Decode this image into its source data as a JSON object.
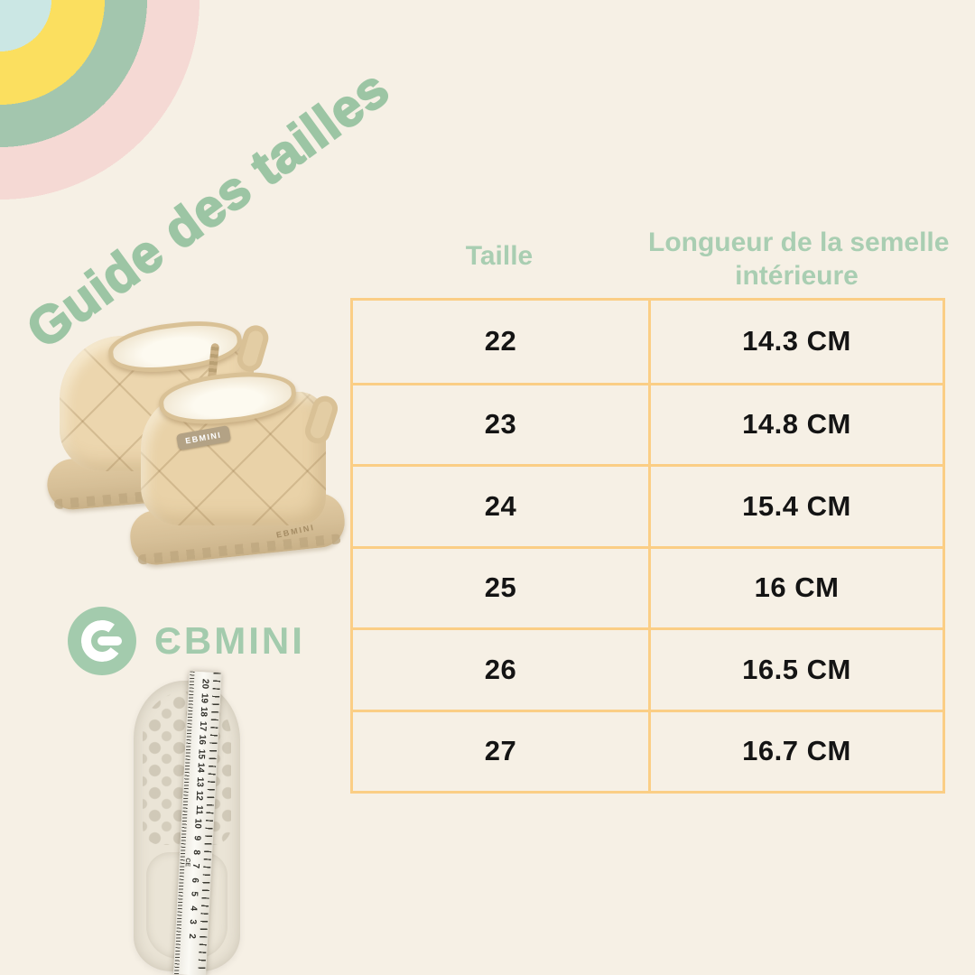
{
  "header": {
    "title": "Guide des tailles"
  },
  "brand": {
    "logo_text": "ЄBMINI",
    "boot_tag": "EBMINI",
    "boot_sole_text": "EBMINI"
  },
  "size_table": {
    "col1_header": "Taille",
    "col2_header_line1": "Longueur de la semelle",
    "col2_header_line2": "intérieure",
    "rows": [
      {
        "taille": "22",
        "longueur": "14.3 CM"
      },
      {
        "taille": "23",
        "longueur": "14.8 CM"
      },
      {
        "taille": "24",
        "longueur": "15.4 CM"
      },
      {
        "taille": "25",
        "longueur": "16 CM"
      },
      {
        "taille": "26",
        "longueur": "16.5 CM"
      },
      {
        "taille": "27",
        "longueur": "16.7 CM"
      }
    ]
  },
  "insole_photo": {
    "ruler_numbers": [
      "20",
      "19",
      "18",
      "17",
      "16",
      "15",
      "14",
      "13",
      "12",
      "11",
      "10",
      "9",
      "8",
      "7",
      "6",
      "5",
      "4",
      "3",
      "2"
    ],
    "ce_mark": "CE"
  },
  "colors": {
    "background": "#f6f0e5",
    "title_green": "#9cc5a4",
    "header_green": "#a9ceb2",
    "table_border_orange": "#fbce85",
    "logo_green": "#a3cbad",
    "rainbow": [
      "#cbe7e4",
      "#fbdf5f",
      "#a3c6ae",
      "#f5d9d4"
    ],
    "boot_beige": "#ecd6ae"
  }
}
